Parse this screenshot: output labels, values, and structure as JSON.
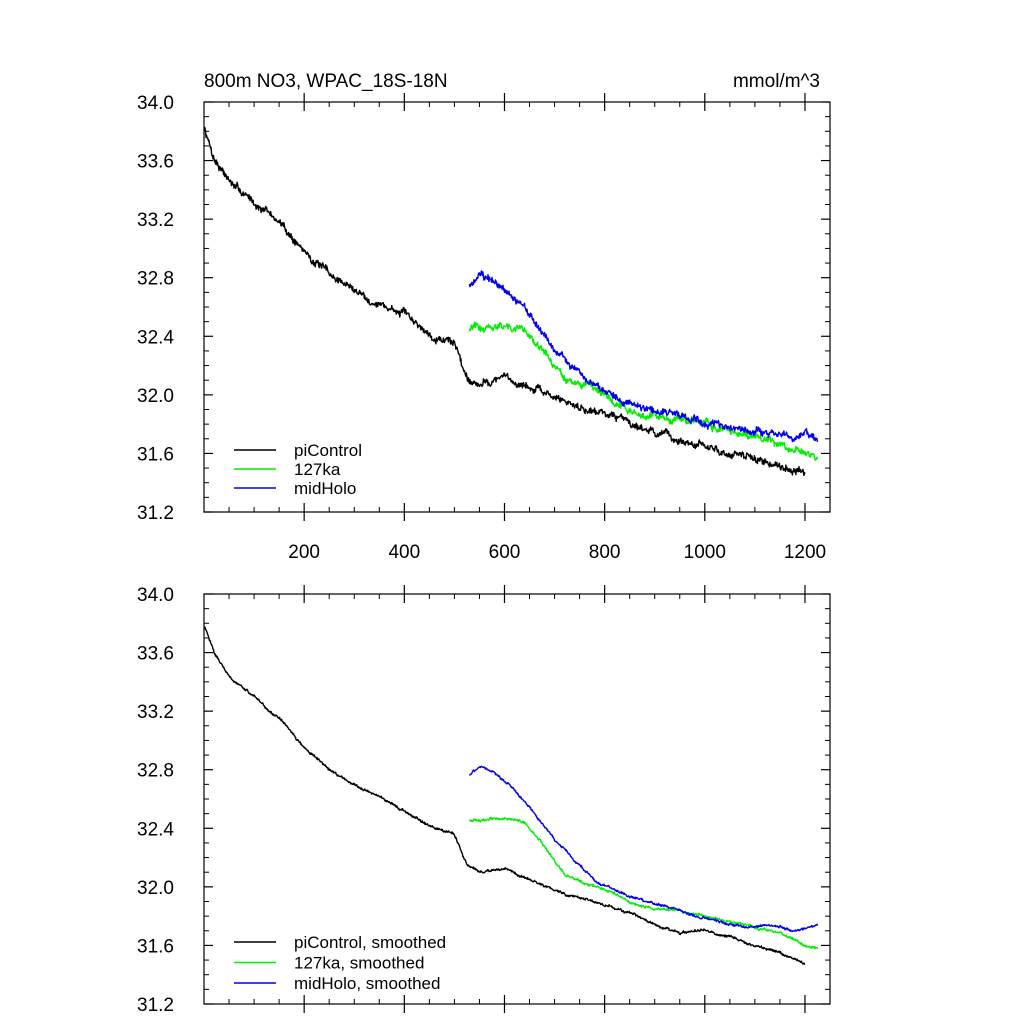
{
  "figure": {
    "title_left": "800m NO3, WPAC_18S-18N",
    "title_right": "mmol/m^3"
  },
  "chart_data": [
    {
      "type": "line",
      "panel": "top",
      "xlim": [
        0,
        1250
      ],
      "ylim": [
        31.2,
        34.0
      ],
      "xticks": [
        200,
        400,
        600,
        800,
        1000,
        1200
      ],
      "yticks": [
        31.2,
        31.6,
        32.0,
        32.4,
        32.8,
        33.2,
        33.6,
        34.0
      ],
      "ytick_labels": [
        "31.2",
        "31.6",
        "32.0",
        "32.4",
        "32.8",
        "33.2",
        "33.6",
        "34.0"
      ],
      "xtick_labels": [
        "200",
        "400",
        "600",
        "800",
        "1000",
        "1200"
      ],
      "legend_position": "bottom-left",
      "noise": 0.035,
      "series": [
        {
          "name": "piControl",
          "color": "#000000",
          "x": [
            1,
            20,
            60,
            100,
            150,
            200,
            250,
            300,
            350,
            400,
            450,
            500,
            525,
            550,
            600,
            650,
            700,
            750,
            800,
            850,
            900,
            950,
            1000,
            1050,
            1100,
            1150,
            1200
          ],
          "y": [
            33.82,
            33.62,
            33.42,
            33.32,
            33.18,
            32.98,
            32.82,
            32.72,
            32.62,
            32.55,
            32.42,
            32.36,
            32.12,
            32.08,
            32.12,
            32.05,
            31.98,
            31.92,
            31.88,
            31.82,
            31.75,
            31.68,
            31.64,
            31.6,
            31.56,
            31.52,
            31.47
          ]
        },
        {
          "name": "127ka",
          "color": "#00ee00",
          "x": [
            530,
            560,
            600,
            640,
            680,
            720,
            760,
            800,
            850,
            900,
            950,
            1000,
            1050,
            1100,
            1150,
            1200,
            1225
          ],
          "y": [
            32.45,
            32.46,
            32.47,
            32.45,
            32.28,
            32.1,
            32.05,
            31.98,
            31.9,
            31.85,
            31.84,
            31.8,
            31.75,
            31.72,
            31.68,
            31.6,
            31.58
          ]
        },
        {
          "name": "midHolo",
          "color": "#0000ee",
          "x": [
            530,
            550,
            580,
            620,
            660,
            700,
            740,
            780,
            830,
            880,
            930,
            980,
            1030,
            1080,
            1130,
            1180,
            1225
          ],
          "y": [
            32.76,
            32.82,
            32.78,
            32.66,
            32.5,
            32.32,
            32.18,
            32.06,
            31.96,
            31.92,
            31.88,
            31.82,
            31.78,
            31.76,
            31.74,
            31.72,
            31.72
          ]
        }
      ]
    },
    {
      "type": "line",
      "panel": "bottom",
      "xlim": [
        0,
        1250
      ],
      "ylim": [
        31.2,
        34.0
      ],
      "yticks": [
        31.2,
        31.6,
        32.0,
        32.4,
        32.8,
        33.2,
        33.6,
        34.0
      ],
      "ytick_labels": [
        "31.2",
        "31.6",
        "32.0",
        "32.4",
        "32.8",
        "33.2",
        "33.6",
        "34.0"
      ],
      "legend_position": "bottom-left",
      "noise": 0.012,
      "series": [
        {
          "name": "piControl, smoothed",
          "color": "#000000",
          "x": [
            1,
            20,
            60,
            100,
            150,
            200,
            250,
            300,
            350,
            400,
            450,
            500,
            525,
            550,
            600,
            650,
            700,
            750,
            800,
            850,
            900,
            950,
            1000,
            1050,
            1100,
            1150,
            1200
          ],
          "y": [
            33.78,
            33.6,
            33.4,
            33.3,
            33.15,
            32.95,
            32.8,
            32.7,
            32.62,
            32.52,
            32.42,
            32.36,
            32.14,
            32.1,
            32.12,
            32.05,
            31.98,
            31.92,
            31.88,
            31.82,
            31.74,
            31.68,
            31.7,
            31.66,
            31.6,
            31.55,
            31.48
          ]
        },
        {
          "name": "127ka, smoothed",
          "color": "#00ee00",
          "x": [
            530,
            560,
            600,
            640,
            680,
            720,
            760,
            800,
            850,
            900,
            950,
            1000,
            1050,
            1100,
            1150,
            1200,
            1225
          ],
          "y": [
            32.45,
            32.46,
            32.47,
            32.44,
            32.28,
            32.08,
            32.03,
            31.98,
            31.9,
            31.85,
            31.84,
            31.8,
            31.76,
            31.72,
            31.68,
            31.6,
            31.58
          ]
        },
        {
          "name": "midHolo, smoothed",
          "color": "#0000ee",
          "x": [
            530,
            550,
            580,
            620,
            660,
            700,
            740,
            780,
            830,
            880,
            930,
            980,
            1030,
            1080,
            1130,
            1180,
            1225
          ],
          "y": [
            32.76,
            32.82,
            32.78,
            32.66,
            32.5,
            32.32,
            32.18,
            32.04,
            31.96,
            31.9,
            31.86,
            31.8,
            31.76,
            31.72,
            31.74,
            31.7,
            31.74
          ]
        }
      ]
    }
  ]
}
